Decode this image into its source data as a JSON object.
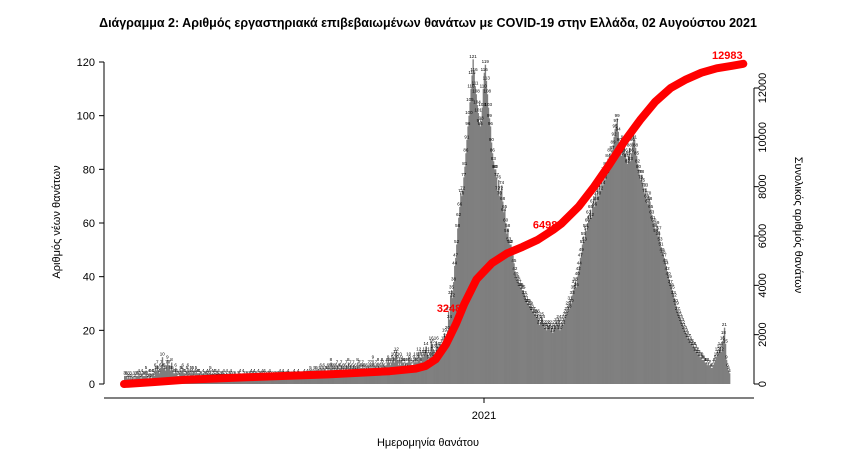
{
  "chart_data": {
    "type": "bar",
    "title": "Διάγραμμα 2: Αριθμός εργαστηριακά επιβεβαιωμένων θανάτων με COVID-19 στην Ελλάδα, 02 Αυγούστου 2021",
    "xlabel": "Ημερομηνία θανάτου",
    "ylabel": "Αριθμός νέων θανάτων",
    "y2label": "Συνολικός αριθμός θανάτων",
    "x_tick_labels": [
      "2021"
    ],
    "ylim": [
      0,
      124
    ],
    "yticks": [
      0,
      20,
      40,
      60,
      80,
      100,
      120
    ],
    "y2lim": [
      0,
      12983
    ],
    "y2ticks": [
      0,
      2000,
      4000,
      6000,
      8000,
      10000,
      12000
    ],
    "grid": false,
    "colors": {
      "bars": "#7f7f7f",
      "cumulative_line": "#ff0000"
    },
    "series": [
      {
        "name": "",
        "type": "bar",
        "values": [
          3,
          3,
          3,
          2,
          3,
          2,
          3,
          2,
          1,
          3,
          2,
          3,
          3,
          3,
          4,
          3,
          2,
          4,
          3,
          3,
          3,
          5,
          3,
          2,
          4,
          4,
          2,
          4,
          4,
          3,
          6,
          5,
          7,
          5,
          4,
          6,
          7,
          10,
          6,
          6,
          5,
          7,
          9,
          7,
          7,
          5,
          8,
          5,
          4,
          4,
          6,
          4,
          3,
          3,
          4,
          5,
          5,
          6,
          4,
          4,
          3,
          5,
          6,
          3,
          4,
          5,
          4,
          5,
          3,
          4,
          5,
          4,
          4,
          4,
          3,
          3,
          2,
          4,
          3,
          3,
          3,
          4,
          3,
          4,
          5,
          2,
          4,
          3,
          4,
          4,
          3,
          3,
          4,
          2,
          3,
          3,
          3,
          4,
          2,
          3,
          4,
          2,
          3,
          3,
          4,
          3,
          2,
          3,
          3,
          2,
          2,
          3,
          3,
          4,
          2,
          2,
          4,
          3,
          2,
          3,
          3,
          2,
          3,
          3,
          4,
          3,
          3,
          4,
          3,
          3,
          2,
          4,
          3,
          3,
          3,
          4,
          3,
          4,
          3,
          2,
          3,
          3,
          4,
          3,
          2,
          3,
          2,
          3,
          3,
          2,
          3,
          3,
          4,
          2,
          3,
          4,
          3,
          2,
          3,
          3,
          4,
          3,
          2,
          3,
          3,
          2,
          4,
          3,
          3,
          3,
          4,
          3,
          2,
          3,
          3,
          3,
          4,
          3,
          3,
          4,
          3,
          4,
          5,
          4,
          3,
          4,
          5,
          4,
          5,
          4,
          4,
          5,
          6,
          4,
          5,
          6,
          4,
          5,
          5,
          6,
          5,
          6,
          8,
          6,
          5,
          6,
          5,
          6,
          7,
          5,
          6,
          6,
          7,
          5,
          6,
          5,
          6,
          7,
          5,
          8,
          6,
          7,
          5,
          6,
          7,
          5,
          6,
          5,
          8,
          7,
          7,
          6,
          6,
          7,
          6,
          6,
          5,
          6,
          5,
          7,
          6,
          7,
          6,
          9,
          6,
          5,
          7,
          6,
          8,
          5,
          6,
          7,
          8,
          7,
          6,
          5,
          7,
          8,
          9,
          8,
          7,
          8,
          9,
          10,
          8,
          11,
          12,
          9,
          7,
          10,
          7,
          9,
          8,
          8,
          7,
          8,
          6,
          8,
          10,
          9,
          8,
          7,
          7,
          9,
          8,
          10,
          8,
          9,
          12,
          10,
          8,
          11,
          10,
          11,
          12,
          14,
          11,
          9,
          10,
          12,
          16,
          15,
          13,
          10,
          11,
          16,
          14,
          13,
          12,
          13,
          14,
          15,
          16,
          19,
          17,
          16,
          20,
          27,
          24,
          33,
          35,
          32,
          38,
          44,
          47,
          52,
          58,
          62,
          66,
          71,
          70,
          72,
          77,
          81,
          86,
          91,
          96,
          100,
          105,
          110,
          115,
          121,
          116,
          111,
          108,
          104,
          101,
          97,
          96,
          98,
          103,
          110,
          116,
          119,
          113,
          108,
          103,
          99,
          96,
          90,
          86,
          83,
          80,
          80,
          77,
          72,
          76,
          70,
          72,
          74,
          68,
          64,
          65,
          60,
          56,
          58,
          53,
          52,
          52,
          48,
          48,
          45,
          42,
          40,
          39,
          38,
          37,
          36,
          36,
          35,
          35,
          33,
          32,
          31,
          30,
          30,
          29,
          29,
          28,
          27,
          27,
          26,
          26,
          25,
          26,
          24,
          22,
          23,
          25,
          24,
          22,
          21,
          21,
          20,
          22,
          21,
          22,
          20,
          21,
          19,
          20,
          22,
          21,
          23,
          22,
          24,
          20,
          21,
          23,
          22,
          24,
          25,
          26,
          27,
          29,
          28,
          31,
          30,
          33,
          35,
          37,
          38,
          36,
          40,
          42,
          44,
          47,
          49,
          52,
          55,
          53,
          58,
          57,
          60,
          63,
          61,
          65,
          62,
          67,
          70,
          66,
          71,
          68,
          73,
          70,
          75,
          72,
          77,
          74,
          79,
          76,
          81,
          78,
          84,
          80,
          86,
          83,
          87,
          89,
          92,
          95,
          97,
          99,
          94,
          90,
          87,
          85,
          88,
          91,
          89,
          86,
          84,
          82,
          85,
          88,
          83,
          86,
          90,
          93,
          91,
          88,
          85,
          82,
          80,
          78,
          76,
          78,
          75,
          73,
          71,
          73,
          69,
          67,
          70,
          68,
          65,
          63,
          61,
          60,
          58,
          56,
          59,
          55,
          57,
          53,
          51,
          49,
          48,
          47,
          45,
          44,
          42,
          40,
          39,
          37,
          36,
          35,
          33,
          32,
          30,
          29,
          27,
          26,
          25,
          24,
          23,
          22,
          21,
          20,
          19,
          18,
          17,
          17,
          16,
          15,
          15,
          14,
          14,
          13,
          12,
          12,
          11,
          11,
          10,
          10,
          9,
          9,
          9,
          8,
          8,
          7,
          8,
          7,
          7,
          6,
          6,
          7,
          8,
          9,
          10,
          12,
          11,
          13,
          14,
          12,
          16,
          18,
          21,
          15,
          9,
          6,
          5,
          4
        ]
      },
      {
        "name": "",
        "type": "line",
        "axis": "secondary",
        "cumulative_total": 12983,
        "points": [
          [
            0,
            0
          ],
          [
            30,
            80
          ],
          [
            60,
            170
          ],
          [
            120,
            270
          ],
          [
            200,
            390
          ],
          [
            260,
            520
          ],
          [
            285,
            620
          ],
          [
            295,
            730
          ],
          [
            305,
            1000
          ],
          [
            315,
            1600
          ],
          [
            325,
            2450
          ],
          [
            333,
            3248
          ],
          [
            345,
            4250
          ],
          [
            360,
            4900
          ],
          [
            375,
            5300
          ],
          [
            390,
            5560
          ],
          [
            405,
            5850
          ],
          [
            420,
            6250
          ],
          [
            428,
            6498
          ],
          [
            445,
            7200
          ],
          [
            460,
            8000
          ],
          [
            475,
            8900
          ],
          [
            490,
            9850
          ],
          [
            505,
            10700
          ],
          [
            520,
            11450
          ],
          [
            535,
            12000
          ],
          [
            550,
            12350
          ],
          [
            565,
            12620
          ],
          [
            580,
            12800
          ],
          [
            595,
            12900
          ],
          [
            606,
            12983
          ]
        ]
      }
    ],
    "annotations": [
      {
        "text": "12983",
        "value": 12983,
        "index": 606
      },
      {
        "text": "6498",
        "value": 6498,
        "index": 428
      },
      {
        "text": "3248",
        "value": 3248,
        "index": 333
      }
    ]
  }
}
